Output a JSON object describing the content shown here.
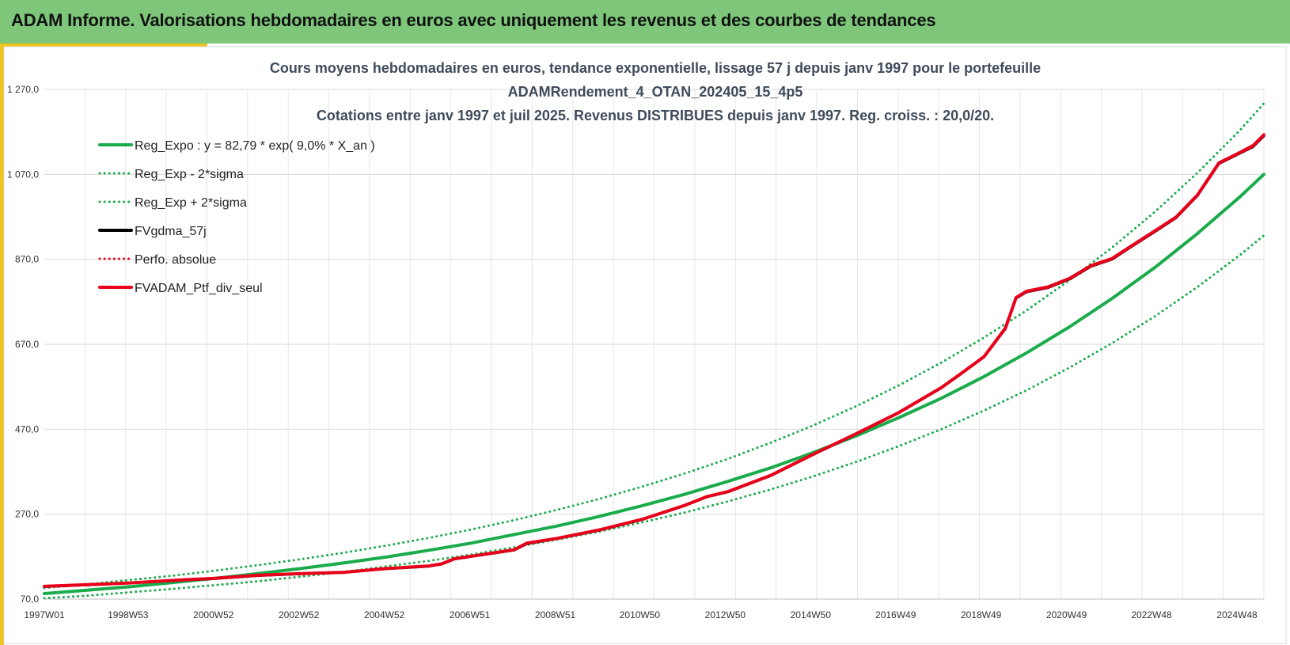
{
  "banner": {
    "title": "ADAM Informe. Valorisations hebdomadaires en euros avec uniquement les revenus et des courbes de tendances"
  },
  "colors": {
    "banner": "#7dc67a",
    "accent": "#f0c419",
    "trend": "#1aab4b",
    "gdma": "#000000",
    "ptf": "#e8001b"
  },
  "chart_data": {
    "type": "line",
    "title": [
      "Cours moyens hebdomadaires  en euros, tendance exponentielle, lissage 57 j depuis janv 1997 pour le portefeuille",
      "ADAMRendement_4_OTAN_202405_15_4p5",
      "Cotations  entre janv 1997 et juil 2025. Revenus DISTRIBUES depuis janv 1997. Reg. croiss. : 20,0/20."
    ],
    "xlabel": "",
    "ylabel": "",
    "x_range": [
      1997.0,
      2025.55
    ],
    "ylim": [
      70,
      1270
    ],
    "y_ticks": [
      70,
      270,
      470,
      670,
      870,
      1070,
      1270
    ],
    "y_tick_labels": [
      "70,0",
      "270,0",
      "470,0",
      "670,0",
      "870,0",
      "1 070,0",
      "1 270,0"
    ],
    "x_ticks": [
      1997.0,
      1998.96,
      2000.96,
      2002.96,
      2004.96,
      2006.96,
      2008.96,
      2010.94,
      2012.94,
      2014.94,
      2016.93,
      2018.93,
      2020.93,
      2022.92,
      2024.92
    ],
    "x_tick_labels": [
      "1997W01",
      "1998W53",
      "2000W52",
      "2002W52",
      "2004W52",
      "2006W51",
      "2008W51",
      "2010W50",
      "2012W50",
      "2014W50",
      "2016W49",
      "2018W49",
      "2020W49",
      "2022W48",
      "2024W48"
    ],
    "grid": true,
    "legend_position": "top-left",
    "series": [
      {
        "name": "Reg_Expo : y = 82,79 * exp( 9,0% *  X_an )",
        "style": "solid",
        "color": "#1aab4b",
        "x": [
          1997,
          1998,
          1999,
          2000,
          2001,
          2002,
          2003,
          2004,
          2005,
          2006,
          2007,
          2008,
          2009,
          2010,
          2011,
          2012,
          2013,
          2014,
          2015,
          2016,
          2017,
          2018,
          2019,
          2020,
          2021,
          2022,
          2023,
          2024,
          2025,
          2025.55
        ],
        "values": [
          83,
          91,
          99,
          109,
          119,
          130,
          142,
          155,
          169,
          185,
          202,
          222,
          242,
          265,
          290,
          317,
          347,
          379,
          415,
          454,
          497,
          543,
          594,
          650,
          711,
          778,
          851,
          931,
          1018,
          1070
        ]
      },
      {
        "name": "Reg_Exp - 2*sigma",
        "style": "dotted",
        "color": "#1aab4b",
        "x": [
          1997,
          1998,
          1999,
          2000,
          2001,
          2002,
          2003,
          2004,
          2005,
          2006,
          2007,
          2008,
          2009,
          2010,
          2011,
          2012,
          2013,
          2014,
          2015,
          2016,
          2017,
          2018,
          2019,
          2020,
          2021,
          2022,
          2023,
          2024,
          2025,
          2025.55
        ],
        "values": [
          72,
          78,
          86,
          94,
          103,
          112,
          123,
          134,
          147,
          160,
          175,
          192,
          210,
          229,
          251,
          274,
          300,
          328,
          359,
          393,
          430,
          470,
          514,
          562,
          615,
          673,
          736,
          805,
          881,
          926
        ]
      },
      {
        "name": "Reg_Exp + 2*sigma",
        "style": "dotted",
        "color": "#1aab4b",
        "x": [
          1997,
          1998,
          1999,
          2000,
          2001,
          2002,
          2003,
          2004,
          2005,
          2006,
          2007,
          2008,
          2009,
          2010,
          2011,
          2012,
          2013,
          2014,
          2015,
          2016,
          2017,
          2018,
          2019,
          2020,
          2021,
          2022,
          2023,
          2024,
          2025,
          2025.55
        ],
        "values": [
          96,
          105,
          115,
          125,
          137,
          150,
          164,
          179,
          196,
          214,
          234,
          256,
          280,
          306,
          335,
          366,
          400,
          438,
          479,
          524,
          573,
          627,
          686,
          750,
          821,
          898,
          982,
          1074,
          1175,
          1237
        ]
      },
      {
        "name": "FVgdma_57j",
        "style": "solid",
        "color": "#000000",
        "x": [
          1997,
          1998,
          1999,
          2000,
          2001,
          2002,
          2003,
          2004,
          2005,
          2006,
          2006.3,
          2006.6,
          2007,
          2008,
          2008.3,
          2009,
          2010,
          2011,
          2012,
          2012.5,
          2013,
          2014,
          2015,
          2016,
          2017,
          2018,
          2018.5,
          2019,
          2019.5,
          2019.75,
          2020,
          2020.5,
          2021,
          2021.5,
          2022,
          2022.5,
          2023,
          2023.5,
          2024,
          2024.5,
          2025,
          2025.3,
          2025.55
        ],
        "values": [
          99,
          103,
          108,
          113,
          118,
          125,
          129,
          133,
          141,
          147,
          152,
          164,
          170,
          185,
          200,
          212,
          232,
          257,
          290,
          310,
          322,
          360,
          410,
          458,
          508,
          567,
          603,
          640,
          706,
          778,
          793,
          803,
          823,
          853,
          870,
          903,
          935,
          968,
          1020,
          1095,
          1120,
          1135,
          1160
        ]
      },
      {
        "name": "Perfo. absolue",
        "style": "dotted",
        "color": "#e8001b",
        "x": [
          1997,
          1998,
          1999,
          2000,
          2001,
          2002,
          2003,
          2004,
          2005,
          2006,
          2006.3,
          2006.6,
          2007,
          2008,
          2008.3,
          2009,
          2010,
          2011,
          2012,
          2012.5,
          2013,
          2014,
          2015,
          2016,
          2017,
          2018,
          2018.5,
          2019,
          2019.5,
          2019.75,
          2020,
          2020.5,
          2021,
          2021.5,
          2022,
          2022.5,
          2023,
          2023.5,
          2024,
          2024.5,
          2025,
          2025.3,
          2025.55
        ],
        "values": [
          99,
          103,
          108,
          113,
          118,
          125,
          129,
          133,
          141,
          147,
          152,
          164,
          170,
          185,
          200,
          212,
          232,
          257,
          290,
          310,
          322,
          360,
          410,
          458,
          508,
          567,
          603,
          640,
          706,
          778,
          793,
          803,
          823,
          853,
          870,
          903,
          935,
          968,
          1020,
          1095,
          1120,
          1135,
          1160
        ]
      },
      {
        "name": "FVADAM_Ptf_div_seul",
        "style": "solid",
        "color": "#e8001b",
        "x": [
          1997,
          1998,
          1999,
          2000,
          2001,
          2002,
          2003,
          2004,
          2005,
          2006,
          2006.3,
          2006.6,
          2007,
          2008,
          2008.3,
          2009,
          2010,
          2011,
          2012,
          2012.5,
          2013,
          2014,
          2015,
          2016,
          2017,
          2018,
          2018.5,
          2019,
          2019.5,
          2019.75,
          2020,
          2020.5,
          2021,
          2021.5,
          2022,
          2022.5,
          2023,
          2023.5,
          2024,
          2024.5,
          2025,
          2025.3,
          2025.55
        ],
        "values": [
          100,
          104,
          108,
          114,
          119,
          126,
          130,
          133,
          142,
          148,
          153,
          165,
          171,
          186,
          202,
          213,
          233,
          258,
          291,
          311,
          323,
          361,
          411,
          459,
          509,
          568,
          604,
          641,
          708,
          780,
          795,
          805,
          825,
          855,
          872,
          905,
          937,
          970,
          1022,
          1097,
          1122,
          1138,
          1163
        ]
      }
    ]
  }
}
